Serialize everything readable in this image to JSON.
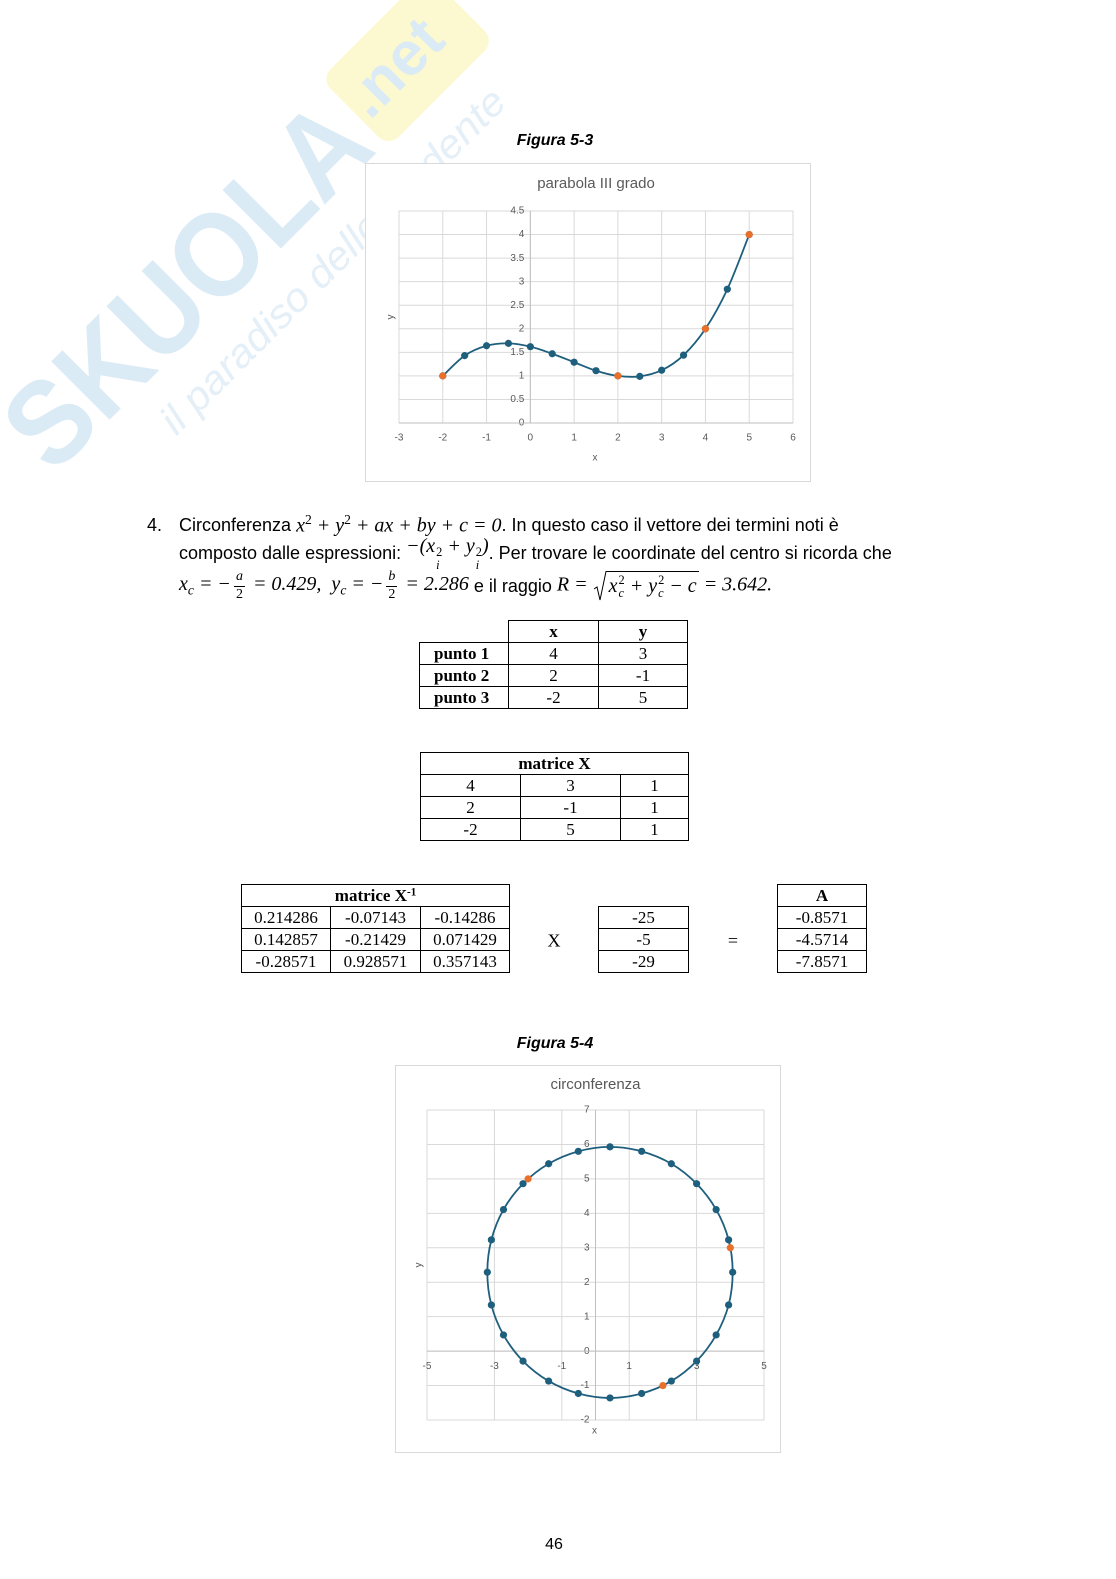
{
  "watermark": {
    "brand": "SKUOLA",
    "suffix": ".net",
    "tagline": "il paradiso dello studente"
  },
  "figure_captions": [
    "Figura 5-3",
    "Figura 5-4"
  ],
  "chart_data": [
    {
      "type": "scatter",
      "title": "parabola III grado",
      "x_label": "x",
      "y_label": "y",
      "xlim": [
        -3,
        6
      ],
      "xticks": [
        -3,
        -2,
        -1,
        0,
        1,
        2,
        3,
        4,
        5,
        6
      ],
      "ylim": [
        0,
        4.5
      ],
      "yticks": [
        0,
        0.5,
        1,
        1.5,
        2,
        2.5,
        3,
        3.5,
        4,
        4.5
      ],
      "grid": true,
      "series": [
        {
          "color": "#1f5f7e",
          "line": "smooth",
          "x": [
            -2,
            -1.5,
            -1,
            -0.5,
            0,
            0.5,
            1,
            1.5,
            2,
            2.5,
            3,
            3.5,
            4,
            4.5,
            5
          ],
          "values": [
            1,
            1.43,
            1.64,
            1.69,
            1.62,
            1.47,
            1.29,
            1.11,
            1,
            0.99,
            1.12,
            1.44,
            2,
            2.84,
            4
          ]
        },
        {
          "color": "#e8702a",
          "x": [
            -2,
            2,
            4,
            5
          ],
          "values": [
            1,
            1,
            2,
            4
          ]
        }
      ]
    },
    {
      "type": "scatter",
      "title": "circonferenza",
      "x_label": "x",
      "y_label": "y",
      "xlim": [
        -5,
        5
      ],
      "xticks": [
        -5,
        -3,
        -1,
        1,
        3,
        5
      ],
      "ylim": [
        -2,
        7
      ],
      "yticks": [
        -2,
        -1,
        0,
        1,
        2,
        3,
        4,
        5,
        6,
        7
      ],
      "grid": true,
      "series": [
        {
          "color": "#1f5f7e",
          "line": "smooth",
          "closed": true,
          "x": [
            4.07,
            3.95,
            3.58,
            3,
            2.25,
            1.37,
            0.43,
            -0.51,
            -1.39,
            -2.15,
            -2.73,
            -3.09,
            -3.21,
            -3.09,
            -2.73,
            -2.15,
            -1.39,
            -0.51,
            0.43,
            1.37,
            2.25,
            3,
            3.58,
            3.95
          ],
          "values": [
            2.29,
            3.23,
            4.11,
            4.86,
            5.44,
            5.8,
            5.93,
            5.8,
            5.44,
            4.86,
            4.11,
            3.23,
            2.29,
            1.34,
            0.47,
            -0.29,
            -0.87,
            -1.23,
            -1.36,
            -1.23,
            -0.87,
            -0.29,
            0.47,
            1.34
          ]
        },
        {
          "color": "#e8702a",
          "x": [
            4,
            2,
            -2
          ],
          "values": [
            3,
            -1,
            5
          ]
        }
      ]
    }
  ],
  "item4": {
    "number": "4.",
    "lines": [
      [
        "Circonferenza ",
        {
          "math": [
            "x",
            {
              "sup": "2"
            },
            " + y",
            {
              "sup": "2"
            },
            " + ax + by + c = 0"
          ]
        },
        ". In questo caso il vettore dei termini noti è"
      ],
      [
        "composto dalle espressioni: ",
        {
          "math": [
            "−(x",
            {
              "subsup": [
                "i",
                "2"
              ]
            },
            " + y",
            {
              "subsup": [
                "i",
                "2"
              ]
            },
            ")"
          ]
        },
        ". Per trovare le coordinate del centro si ricorda che"
      ],
      [
        {
          "math": [
            "x",
            {
              "sub": "c"
            },
            " = −",
            {
              "frac": [
                "a",
                "2"
              ]
            },
            " = 0.429,  y",
            {
              "sub": "c"
            },
            " = −",
            {
              "frac": [
                "b",
                "2"
              ]
            },
            " = 2.286"
          ]
        },
        " e il raggio ",
        {
          "math": [
            "R = ",
            {
              "sqrt": [
                "x",
                {
                  "subsup": [
                    "c",
                    "2"
                  ]
                },
                " + y",
                {
                  "subsup": [
                    "c",
                    "2"
                  ]
                },
                " − c"
              ]
            },
            " = 3.642."
          ]
        }
      ]
    ]
  },
  "points_table": {
    "columns": [
      "x",
      "y"
    ],
    "rows": [
      {
        "label": "punto 1",
        "values": [
          4,
          3
        ]
      },
      {
        "label": "punto 2",
        "values": [
          2,
          -1
        ]
      },
      {
        "label": "punto 3",
        "values": [
          -2,
          5
        ]
      }
    ]
  },
  "matrix_x": {
    "title": "matrice X",
    "rows": [
      [
        4,
        3,
        1
      ],
      [
        2,
        -1,
        1
      ],
      [
        -2,
        5,
        1
      ]
    ]
  },
  "matrix_x_inverse": {
    "title": "matrice X",
    "title_sup": "-1",
    "rows": [
      [
        0.214286,
        -0.07143,
        -0.14286
      ],
      [
        0.142857,
        -0.21429,
        0.071429
      ],
      [
        -0.28571,
        0.928571,
        0.357143
      ]
    ]
  },
  "known_terms": {
    "operator": "X",
    "values": [
      -25,
      -5,
      -29
    ]
  },
  "equals": "=",
  "solution": {
    "title": "A",
    "values": [
      -0.8571,
      -4.5714,
      -7.8571
    ]
  },
  "page_number": "46"
}
